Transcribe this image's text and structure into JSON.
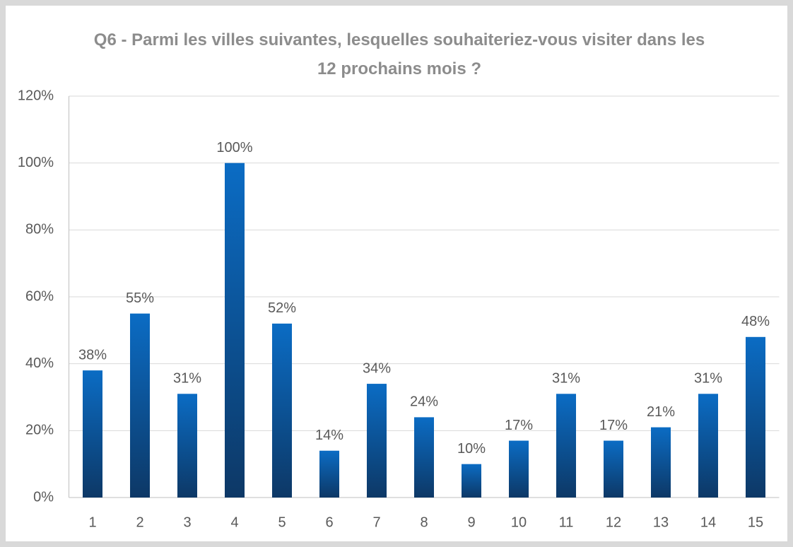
{
  "chart_data": {
    "type": "bar",
    "title": "Q6 - Parmi les villes suivantes, lesquelles souhaiteriez-vous visiter dans les 12 prochains mois ?",
    "categories": [
      "1",
      "2",
      "3",
      "4",
      "5",
      "6",
      "7",
      "8",
      "9",
      "10",
      "11",
      "12",
      "13",
      "14",
      "15"
    ],
    "values": [
      38,
      55,
      31,
      100,
      52,
      14,
      34,
      24,
      10,
      17,
      31,
      17,
      21,
      31,
      48
    ],
    "value_labels": [
      "38%",
      "55%",
      "31%",
      "100%",
      "52%",
      "14%",
      "34%",
      "24%",
      "10%",
      "17%",
      "31%",
      "17%",
      "21%",
      "31%",
      "48%"
    ],
    "color": "#0a63b4",
    "ylim": [
      0,
      120
    ],
    "yticks": [
      {
        "value": 0,
        "label": "0%"
      },
      {
        "value": 20,
        "label": "20%"
      },
      {
        "value": 40,
        "label": "40%"
      },
      {
        "value": 60,
        "label": "60%"
      },
      {
        "value": 80,
        "label": "80%"
      },
      {
        "value": 100,
        "label": "100%"
      },
      {
        "value": 120,
        "label": "120%"
      }
    ],
    "grid": true
  }
}
